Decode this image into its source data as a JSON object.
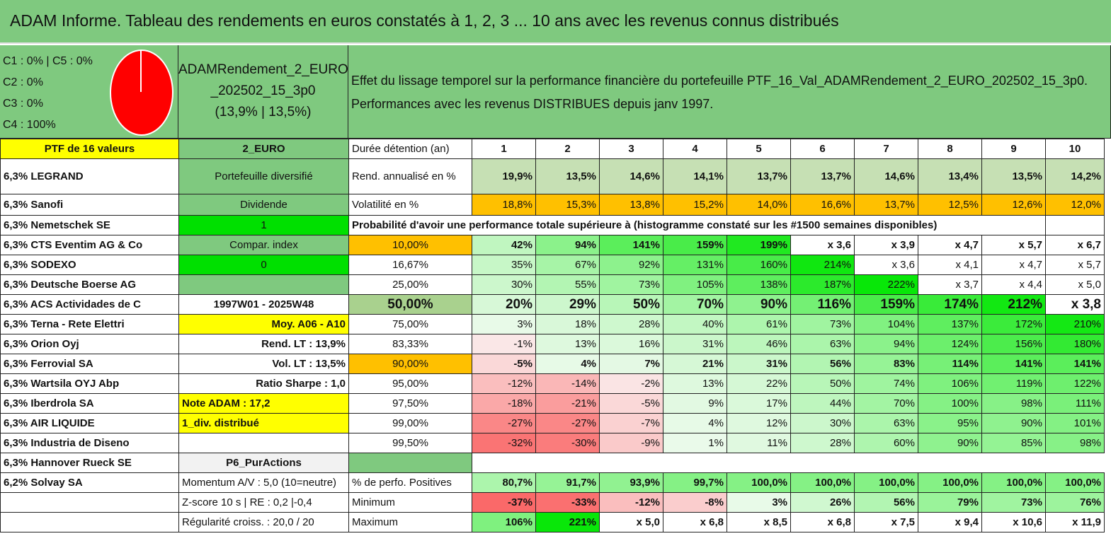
{
  "title": "ADAM Informe. Tableau des rendements en euros constatés à 1, 2, 3 ... 10 ans avec les revenus connus distribués",
  "pie_legend": [
    "C1 : 0% | C5 : 0%",
    "C2 : 0%",
    "C3 : 0%",
    "C4 : 100%"
  ],
  "portfolio": {
    "name_line1": "ADAMRendement_2_EURO",
    "name_line2": "_202502_15_3p0",
    "name_line3": "(13,9% | 13,5%)"
  },
  "effect": {
    "line1": "Effet du lissage temporel sur la performance financière du portefeuille PTF_16_Val_ADAMRendement_2_EURO_202502_15_3p0.",
    "line2": "Performances avec les revenus DISTRIBUES depuis janv 1997."
  },
  "header_row": {
    "ptf": "PTF de 16 valeurs",
    "code": "2_EURO",
    "duration_label": "Durée détention (an)",
    "years": [
      "1",
      "2",
      "3",
      "4",
      "5",
      "6",
      "7",
      "8",
      "9",
      "10"
    ]
  },
  "stocks": [
    "6,3% LEGRAND",
    "6,3% Sanofi",
    "6,3% Nemetschek SE",
    "6,3% CTS Eventim AG & Co",
    "6,3% SODEXO",
    "6,3% Deutsche Boerse AG",
    "6,3% ACS Actividades de C",
    "6,3% Terna - Rete Elettri",
    "6,3% Orion Oyj",
    "6,3% Ferrovial SA",
    "6,3% Wartsila OYJ Abp",
    "6,3% Iberdrola SA",
    "6,3% AIR LIQUIDE",
    "6,3% Industria de Diseno",
    "6,3% Hannover Rueck SE",
    "6,2% Solvay SA",
    ""
  ],
  "info": [
    "Portefeuille diversifié",
    "Dividende",
    "1",
    "Compar. index",
    "0",
    "",
    "1997W01 - 2025W48",
    "Moy. A06 - A10",
    "Rend. LT : 13,9%",
    "Vol. LT : 13,5%",
    "Ratio Sharpe : 1,0",
    "Note ADAM : 17,2",
    "1_div. distribué",
    "",
    "P6_PurActions",
    "Momentum A/V : 5,0 (10=neutre)",
    "Z-score 10 s | RE : 0,2 |-0,4",
    "Régularité croiss. : 20,0 / 20"
  ],
  "rend": {
    "label": "Rend. annualisé en %",
    "values": [
      "19,9%",
      "13,5%",
      "14,6%",
      "14,1%",
      "13,7%",
      "13,7%",
      "14,6%",
      "13,4%",
      "13,5%",
      "14,2%"
    ]
  },
  "vol": {
    "label": "Volatilité en %",
    "values": [
      "18,8%",
      "15,3%",
      "13,8%",
      "15,2%",
      "14,0%",
      "16,6%",
      "13,7%",
      "12,5%",
      "12,6%",
      "12,0%"
    ]
  },
  "prob_title": "Probabilité d'avoir une performance totale supérieure à (histogramme constaté sur les #1500 semaines disponibles)",
  "probabilities": [
    {
      "p": "10,00%",
      "v": [
        "42%",
        "94%",
        "141%",
        "159%",
        "199%",
        "x 3,6",
        "x 3,9",
        "x 4,7",
        "x 5,7",
        "x 6,7"
      ]
    },
    {
      "p": "16,67%",
      "v": [
        "35%",
        "67%",
        "92%",
        "131%",
        "160%",
        "214%",
        "x 3,6",
        "x 4,1",
        "x 4,7",
        "x 5,7"
      ]
    },
    {
      "p": "25,00%",
      "v": [
        "30%",
        "55%",
        "73%",
        "105%",
        "138%",
        "187%",
        "222%",
        "x 3,7",
        "x 4,4",
        "x 5,0"
      ]
    },
    {
      "p": "50,00%",
      "v": [
        "20%",
        "29%",
        "50%",
        "70%",
        "90%",
        "116%",
        "159%",
        "174%",
        "212%",
        "x 3,8"
      ]
    },
    {
      "p": "75,00%",
      "v": [
        "3%",
        "18%",
        "28%",
        "40%",
        "61%",
        "73%",
        "104%",
        "137%",
        "172%",
        "210%"
      ]
    },
    {
      "p": "83,33%",
      "v": [
        "-1%",
        "13%",
        "16%",
        "31%",
        "46%",
        "63%",
        "94%",
        "124%",
        "156%",
        "180%"
      ]
    },
    {
      "p": "90,00%",
      "v": [
        "-5%",
        "4%",
        "7%",
        "21%",
        "31%",
        "56%",
        "83%",
        "114%",
        "141%",
        "141%"
      ]
    },
    {
      "p": "95,00%",
      "v": [
        "-12%",
        "-14%",
        "-2%",
        "13%",
        "22%",
        "50%",
        "74%",
        "106%",
        "119%",
        "122%"
      ]
    },
    {
      "p": "97,50%",
      "v": [
        "-18%",
        "-21%",
        "-5%",
        "9%",
        "17%",
        "44%",
        "70%",
        "100%",
        "98%",
        "111%"
      ]
    },
    {
      "p": "99,00%",
      "v": [
        "-27%",
        "-27%",
        "-7%",
        "4%",
        "12%",
        "30%",
        "63%",
        "95%",
        "90%",
        "101%"
      ]
    },
    {
      "p": "99,50%",
      "v": [
        "-32%",
        "-30%",
        "-9%",
        "1%",
        "11%",
        "28%",
        "60%",
        "90%",
        "85%",
        "98%"
      ]
    }
  ],
  "stats": [
    {
      "label": "% de perfo. Positives",
      "values": [
        "80,7%",
        "91,7%",
        "93,9%",
        "99,7%",
        "100,0%",
        "100,0%",
        "100,0%",
        "100,0%",
        "100,0%",
        "100,0%"
      ]
    },
    {
      "label": "Minimum",
      "values": [
        "-37%",
        "-33%",
        "-12%",
        "-8%",
        "3%",
        "26%",
        "56%",
        "79%",
        "73%",
        "76%"
      ]
    },
    {
      "label": "Maximum",
      "values": [
        "106%",
        "221%",
        "x 5,0",
        "x 6,8",
        "x 8,5",
        "x 6,8",
        "x 7,5",
        "x 9,4",
        "x 10,6",
        "x 11,9"
      ]
    }
  ],
  "colors": {
    "title_bg": "#7fc97f",
    "yellow": "#ffff00",
    "orange": "#ffc000",
    "green": "#00e000",
    "red_text": "#e00000"
  }
}
